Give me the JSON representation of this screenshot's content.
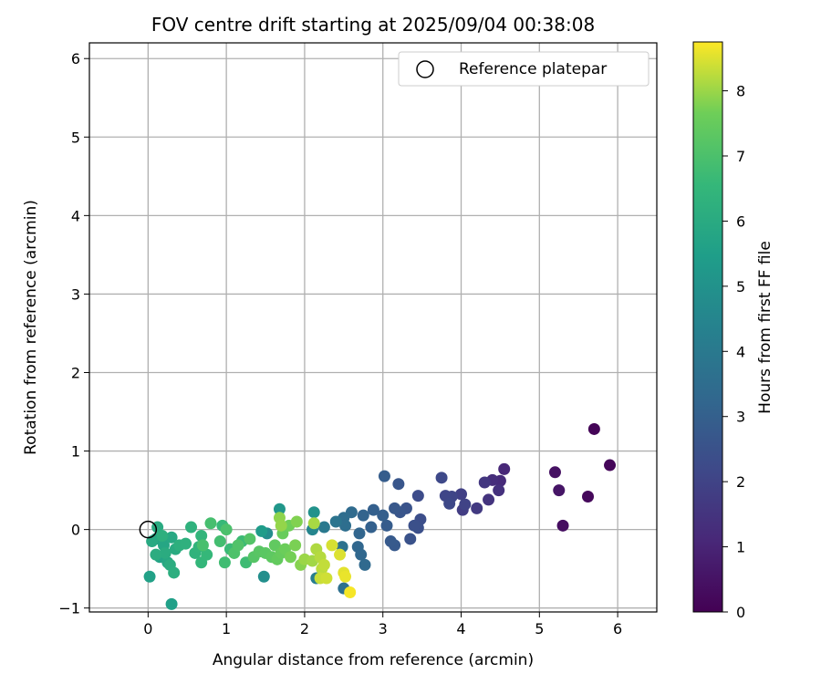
{
  "chart_data": {
    "type": "scatter",
    "title": "FOV centre drift starting at 2025/09/04 00:38:08",
    "xlabel": "Angular distance from reference (arcmin)",
    "ylabel": "Rotation from reference (arcmin)",
    "xlim": [
      -0.75,
      6.5
    ],
    "ylim": [
      -1.05,
      6.2
    ],
    "xticks": [
      0,
      1,
      2,
      3,
      4,
      5,
      6
    ],
    "yticks": [
      -1,
      0,
      1,
      2,
      3,
      4,
      5,
      6
    ],
    "xtick_labels": [
      "0",
      "1",
      "2",
      "3",
      "4",
      "5",
      "6"
    ],
    "ytick_labels": [
      "−1",
      "0",
      "1",
      "2",
      "3",
      "4",
      "5",
      "6"
    ],
    "grid": true,
    "legend": {
      "position": "top-right",
      "label": "Reference platepar"
    },
    "reference_point": {
      "x": 0,
      "y": 0
    },
    "colorbar": {
      "label": "Hours from first FF file",
      "colormap": "viridis",
      "range": [
        0,
        8.75
      ],
      "ticks": [
        0,
        1,
        2,
        3,
        4,
        5,
        6,
        7,
        8
      ],
      "tick_labels": [
        "0",
        "1",
        "2",
        "3",
        "4",
        "5",
        "6",
        "7",
        "8"
      ]
    },
    "points": [
      {
        "x": 5.7,
        "y": 1.28,
        "t": 0.1
      },
      {
        "x": 5.9,
        "y": 0.82,
        "t": 0.15
      },
      {
        "x": 5.62,
        "y": 0.42,
        "t": 0.2
      },
      {
        "x": 5.3,
        "y": 0.05,
        "t": 0.35
      },
      {
        "x": 5.2,
        "y": 0.73,
        "t": 0.45
      },
      {
        "x": 5.25,
        "y": 0.5,
        "t": 0.55
      },
      {
        "x": 4.55,
        "y": 0.77,
        "t": 1.1
      },
      {
        "x": 4.5,
        "y": 0.62,
        "t": 1.2
      },
      {
        "x": 4.4,
        "y": 0.63,
        "t": 1.3
      },
      {
        "x": 4.48,
        "y": 0.5,
        "t": 1.4
      },
      {
        "x": 4.35,
        "y": 0.38,
        "t": 1.5
      },
      {
        "x": 4.3,
        "y": 0.6,
        "t": 1.6
      },
      {
        "x": 4.2,
        "y": 0.27,
        "t": 1.7
      },
      {
        "x": 4.02,
        "y": 0.25,
        "t": 1.8
      },
      {
        "x": 4.0,
        "y": 0.45,
        "t": 1.9
      },
      {
        "x": 4.05,
        "y": 0.32,
        "t": 2.0
      },
      {
        "x": 3.88,
        "y": 0.42,
        "t": 2.05
      },
      {
        "x": 3.8,
        "y": 0.43,
        "t": 2.1
      },
      {
        "x": 3.85,
        "y": 0.33,
        "t": 2.15
      },
      {
        "x": 3.75,
        "y": 0.66,
        "t": 2.2
      },
      {
        "x": 3.45,
        "y": 0.43,
        "t": 2.3
      },
      {
        "x": 3.48,
        "y": 0.13,
        "t": 2.35
      },
      {
        "x": 3.45,
        "y": 0.02,
        "t": 2.4
      },
      {
        "x": 3.4,
        "y": 0.05,
        "t": 2.45
      },
      {
        "x": 3.35,
        "y": -0.12,
        "t": 2.5
      },
      {
        "x": 3.3,
        "y": 0.27,
        "t": 2.55
      },
      {
        "x": 3.22,
        "y": 0.22,
        "t": 2.6
      },
      {
        "x": 3.2,
        "y": 0.58,
        "t": 2.65
      },
      {
        "x": 3.15,
        "y": 0.27,
        "t": 2.7
      },
      {
        "x": 3.15,
        "y": -0.2,
        "t": 2.75
      },
      {
        "x": 3.1,
        "y": -0.15,
        "t": 2.8
      },
      {
        "x": 3.05,
        "y": 0.05,
        "t": 2.85
      },
      {
        "x": 3.02,
        "y": 0.68,
        "t": 2.9
      },
      {
        "x": 3.0,
        "y": 0.18,
        "t": 2.95
      },
      {
        "x": 2.88,
        "y": 0.25,
        "t": 3.0
      },
      {
        "x": 2.85,
        "y": 0.03,
        "t": 3.05
      },
      {
        "x": 2.75,
        "y": 0.18,
        "t": 3.15
      },
      {
        "x": 2.7,
        "y": -0.05,
        "t": 3.2
      },
      {
        "x": 2.68,
        "y": -0.22,
        "t": 3.25
      },
      {
        "x": 2.72,
        "y": -0.32,
        "t": 3.3
      },
      {
        "x": 2.77,
        "y": -0.45,
        "t": 3.35
      },
      {
        "x": 2.6,
        "y": 0.22,
        "t": 3.4
      },
      {
        "x": 2.5,
        "y": 0.15,
        "t": 3.5
      },
      {
        "x": 2.52,
        "y": 0.05,
        "t": 3.55
      },
      {
        "x": 2.5,
        "y": -0.75,
        "t": 3.6
      },
      {
        "x": 2.48,
        "y": -0.22,
        "t": 3.7
      },
      {
        "x": 2.4,
        "y": 0.1,
        "t": 3.8
      },
      {
        "x": 2.25,
        "y": 0.03,
        "t": 4.0
      },
      {
        "x": 2.15,
        "y": -0.62,
        "t": 4.2
      },
      {
        "x": 2.1,
        "y": 0.0,
        "t": 4.5
      },
      {
        "x": 2.12,
        "y": 0.22,
        "t": 5.0
      },
      {
        "x": 1.52,
        "y": -0.05,
        "t": 4.8
      },
      {
        "x": 1.48,
        "y": -0.6,
        "t": 4.9
      },
      {
        "x": 1.68,
        "y": 0.26,
        "t": 5.2
      },
      {
        "x": 1.45,
        "y": -0.02,
        "t": 5.4
      },
      {
        "x": 0.02,
        "y": -0.6,
        "t": 5.6
      },
      {
        "x": 0.3,
        "y": -0.95,
        "t": 5.55
      },
      {
        "x": 0.15,
        "y": -0.35,
        "t": 5.7
      },
      {
        "x": 0.1,
        "y": -0.12,
        "t": 5.75
      },
      {
        "x": 0.2,
        "y": -0.2,
        "t": 5.8
      },
      {
        "x": 0.25,
        "y": -0.42,
        "t": 5.85
      },
      {
        "x": 0.3,
        "y": -0.1,
        "t": 5.9
      },
      {
        "x": 0.05,
        "y": -0.15,
        "t": 5.95
      },
      {
        "x": 0.12,
        "y": 0.03,
        "t": 6.0
      },
      {
        "x": 0.35,
        "y": -0.25,
        "t": 6.0
      },
      {
        "x": 0.22,
        "y": -0.3,
        "t": 6.05
      },
      {
        "x": 0.1,
        "y": -0.32,
        "t": 6.1
      },
      {
        "x": 0.28,
        "y": -0.45,
        "t": 6.1
      },
      {
        "x": 0.33,
        "y": -0.55,
        "t": 6.15
      },
      {
        "x": 0.18,
        "y": -0.08,
        "t": 6.2
      },
      {
        "x": 0.4,
        "y": -0.2,
        "t": 6.2
      },
      {
        "x": 0.48,
        "y": -0.18,
        "t": 6.25
      },
      {
        "x": 0.55,
        "y": 0.03,
        "t": 6.3
      },
      {
        "x": 0.6,
        "y": -0.3,
        "t": 6.35
      },
      {
        "x": 0.65,
        "y": -0.22,
        "t": 6.4
      },
      {
        "x": 0.68,
        "y": -0.08,
        "t": 6.45
      },
      {
        "x": 0.68,
        "y": -0.42,
        "t": 6.5
      },
      {
        "x": 0.75,
        "y": -0.32,
        "t": 6.55
      },
      {
        "x": 0.95,
        "y": 0.05,
        "t": 6.6
      },
      {
        "x": 1.05,
        "y": -0.25,
        "t": 6.65
      },
      {
        "x": 1.2,
        "y": -0.15,
        "t": 6.7
      },
      {
        "x": 1.25,
        "y": -0.42,
        "t": 6.75
      },
      {
        "x": 0.98,
        "y": -0.42,
        "t": 6.8
      },
      {
        "x": 0.92,
        "y": -0.15,
        "t": 6.85
      },
      {
        "x": 0.8,
        "y": 0.08,
        "t": 6.9
      },
      {
        "x": 0.7,
        "y": -0.2,
        "t": 6.95
      },
      {
        "x": 1.0,
        "y": 0.0,
        "t": 7.0
      },
      {
        "x": 1.1,
        "y": -0.3,
        "t": 7.05
      },
      {
        "x": 1.15,
        "y": -0.2,
        "t": 7.1
      },
      {
        "x": 1.3,
        "y": -0.12,
        "t": 7.15
      },
      {
        "x": 1.35,
        "y": -0.35,
        "t": 7.2
      },
      {
        "x": 1.42,
        "y": -0.28,
        "t": 7.25
      },
      {
        "x": 1.5,
        "y": -0.3,
        "t": 7.3
      },
      {
        "x": 1.58,
        "y": -0.35,
        "t": 7.35
      },
      {
        "x": 1.62,
        "y": -0.2,
        "t": 7.4
      },
      {
        "x": 1.65,
        "y": -0.38,
        "t": 7.45
      },
      {
        "x": 1.7,
        "y": -0.3,
        "t": 7.5
      },
      {
        "x": 1.72,
        "y": -0.05,
        "t": 7.55
      },
      {
        "x": 1.75,
        "y": -0.25,
        "t": 7.6
      },
      {
        "x": 1.8,
        "y": 0.05,
        "t": 7.65
      },
      {
        "x": 1.82,
        "y": -0.35,
        "t": 7.7
      },
      {
        "x": 1.88,
        "y": -0.2,
        "t": 7.75
      },
      {
        "x": 1.9,
        "y": 0.1,
        "t": 7.8
      },
      {
        "x": 1.95,
        "y": -0.45,
        "t": 7.85
      },
      {
        "x": 1.68,
        "y": 0.15,
        "t": 7.9
      },
      {
        "x": 1.7,
        "y": 0.05,
        "t": 7.95
      },
      {
        "x": 2.0,
        "y": -0.38,
        "t": 8.0
      },
      {
        "x": 2.1,
        "y": -0.4,
        "t": 8.05
      },
      {
        "x": 2.12,
        "y": 0.08,
        "t": 8.1
      },
      {
        "x": 2.15,
        "y": -0.25,
        "t": 8.15
      },
      {
        "x": 2.2,
        "y": -0.35,
        "t": 8.2
      },
      {
        "x": 2.22,
        "y": -0.5,
        "t": 8.25
      },
      {
        "x": 2.25,
        "y": -0.45,
        "t": 8.3
      },
      {
        "x": 2.2,
        "y": -0.62,
        "t": 8.35
      },
      {
        "x": 2.28,
        "y": -0.62,
        "t": 8.4
      },
      {
        "x": 2.35,
        "y": -0.2,
        "t": 8.45
      },
      {
        "x": 2.45,
        "y": -0.32,
        "t": 8.5
      },
      {
        "x": 2.5,
        "y": -0.55,
        "t": 8.55
      },
      {
        "x": 2.52,
        "y": -0.6,
        "t": 8.6
      },
      {
        "x": 2.58,
        "y": -0.8,
        "t": 8.7
      }
    ]
  }
}
